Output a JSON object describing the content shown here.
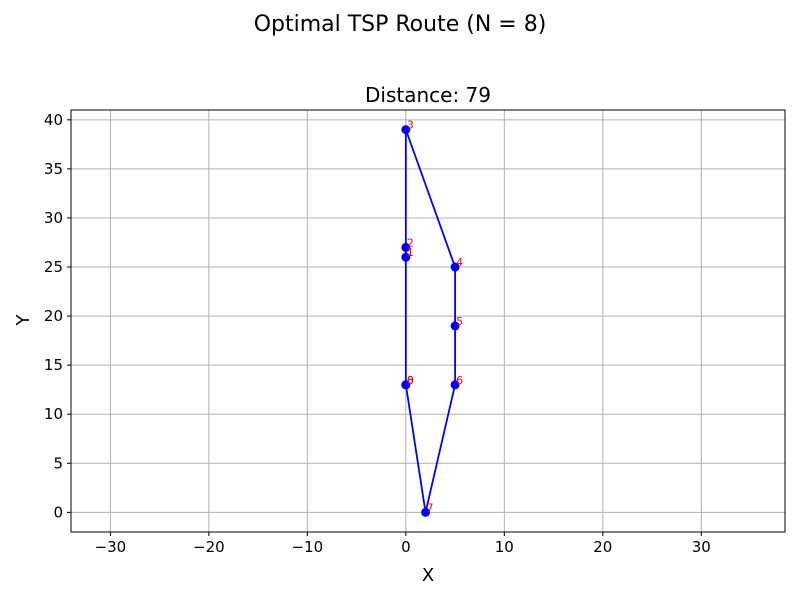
{
  "chart_data": {
    "type": "line",
    "suptitle": "Optimal TSP Route (N = 8)",
    "title": "Distance: 79",
    "xlabel": "X",
    "ylabel": "Y",
    "xlim": [
      -34,
      38.5
    ],
    "ylim": [
      -2,
      41
    ],
    "xticks": [
      -30,
      -20,
      -10,
      0,
      10,
      20,
      30
    ],
    "xtick_labels": [
      "−30",
      "−20",
      "−10",
      "0",
      "10",
      "20",
      "30"
    ],
    "yticks": [
      0,
      5,
      10,
      15,
      20,
      25,
      30,
      35,
      40
    ],
    "ytick_labels": [
      "0",
      "5",
      "10",
      "15",
      "20",
      "25",
      "30",
      "35",
      "40"
    ],
    "grid": true,
    "points": [
      {
        "label": "0",
        "x": 0,
        "y": 13
      },
      {
        "label": "1",
        "x": 0,
        "y": 26
      },
      {
        "label": "2",
        "x": 0,
        "y": 27
      },
      {
        "label": "3",
        "x": 0,
        "y": 39
      },
      {
        "label": "4",
        "x": 5,
        "y": 25
      },
      {
        "label": "5",
        "x": 5,
        "y": 19
      },
      {
        "label": "6",
        "x": 5,
        "y": 13
      },
      {
        "label": "7",
        "x": 2,
        "y": 0
      },
      {
        "label": "8",
        "x": 0,
        "y": 13
      }
    ],
    "colors": {
      "route": "#0000ff",
      "marker": "#0000ff",
      "point_label": "#ff0000",
      "grid": "#b0b0b0"
    }
  }
}
